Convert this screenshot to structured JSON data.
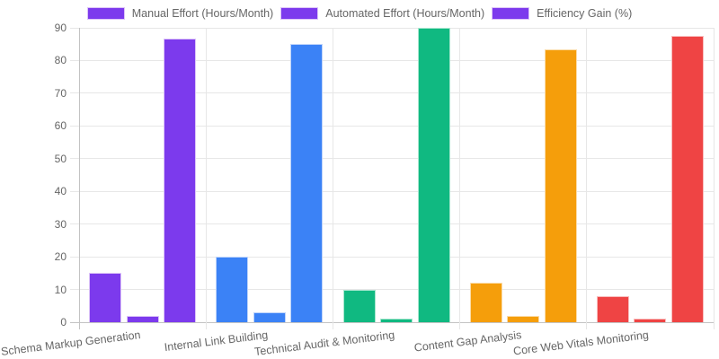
{
  "chart_data": {
    "type": "bar",
    "title": "",
    "xlabel": "",
    "ylabel": "",
    "categories": [
      "Schema Markup Generation",
      "Internal Link Building",
      "Technical Audit & Monitoring",
      "Content Gap Analysis",
      "Core Web Vitals Monitoring"
    ],
    "series": [
      {
        "name": "Manual Effort (Hours/Month)",
        "values": [
          15,
          20,
          10,
          12,
          8
        ]
      },
      {
        "name": "Automated Effort (Hours/Month)",
        "values": [
          2,
          3,
          1,
          2,
          1
        ]
      },
      {
        "name": "Efficiency Gain (%)",
        "values": [
          86.7,
          85,
          90,
          83.3,
          87.5
        ]
      }
    ],
    "category_colors": [
      "#7C3AED",
      "#3B82F6",
      "#10B981",
      "#F59E0B",
      "#EF4444"
    ],
    "category_border_colors": [
      "#DCC4F8",
      "#BDD3FA",
      "#A6E6CE",
      "#FBDCA8",
      "#F9BDBD"
    ],
    "legend_swatch_color": "#7C3AED",
    "legend_swatch_border_color": "#DCC4F8",
    "legend_position": "top",
    "ylim": [
      0,
      90
    ],
    "yticks": [
      0,
      10,
      20,
      30,
      40,
      50,
      60,
      70,
      80,
      90
    ],
    "grid": true,
    "axis_text_color": "#666666",
    "grid_color": "#e7e7e7",
    "zero_line_color": "#c3c3c3"
  }
}
